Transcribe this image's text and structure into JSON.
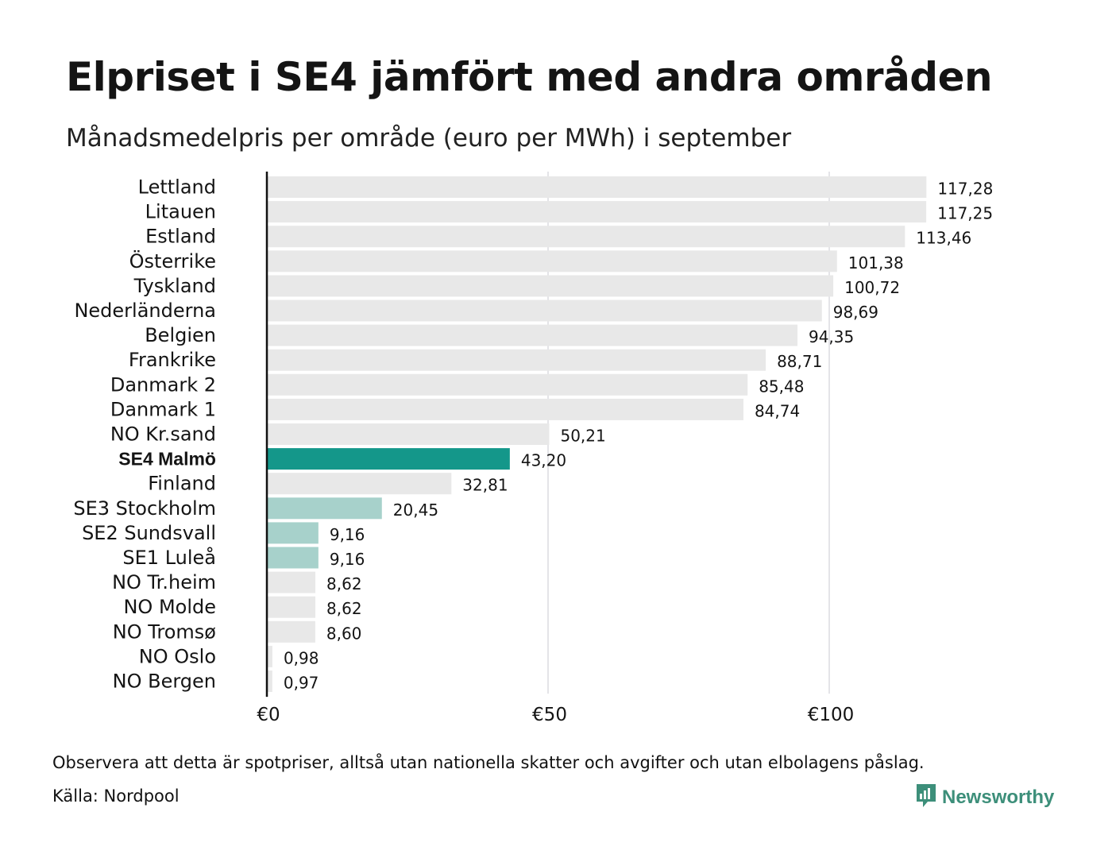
{
  "header": {
    "title": "Elpriset i SE4 jämfört med andra områden",
    "subtitle": "Månadsmedelpris per område (euro per MWh) i september"
  },
  "footer": {
    "note": "Observera att detta är spotpriser, alltså utan nationella skatter och avgifter och utan elbolagens påslag.",
    "source": "Källa: Nordpool",
    "brand": "Newsworthy"
  },
  "colors": {
    "default_bar": "#e8e8e8",
    "highlight_bar": "#14978a",
    "se_bar": "#a7d1cb",
    "axis_line": "#111111",
    "grid": "#c9c9d2",
    "brand": "#3d8f7a"
  },
  "chart_data": {
    "type": "bar",
    "orientation": "horizontal",
    "title": "Elpriset i SE4 jämfört med andra områden",
    "subtitle": "Månadsmedelpris per område (euro per MWh) i september",
    "xlim": [
      0,
      125
    ],
    "x_ticks": [
      0,
      50,
      100
    ],
    "x_tick_labels": [
      "€0",
      "€50",
      "€100"
    ],
    "grid": true,
    "categories": [
      "Lettland",
      "Litauen",
      "Estland",
      "Österrike",
      "Tyskland",
      "Nederländerna",
      "Belgien",
      "Frankrike",
      "Danmark  2",
      "Danmark  1",
      "NO Kr.sand",
      "SE4 Malmö",
      "Finland",
      "SE3  Stockholm",
      "SE2  Sundsvall",
      "SE1  Luleå",
      "NO Tr.heim",
      "NO Molde",
      "NO Tromsø",
      "NO Oslo",
      "NO Bergen"
    ],
    "values": [
      117.28,
      117.25,
      113.46,
      101.38,
      100.72,
      98.69,
      94.35,
      88.71,
      85.48,
      84.74,
      50.21,
      43.2,
      32.81,
      20.45,
      9.16,
      9.16,
      8.62,
      8.62,
      8.6,
      0.98,
      0.97
    ],
    "value_labels": [
      "117,28",
      "117,25",
      "113,46",
      "101,38",
      "100,72",
      "98,69",
      "94,35",
      "88,71",
      "85,48",
      "84,74",
      "50,21",
      "43,20",
      "32,81",
      "20,45",
      "9,16",
      "9,16",
      "8,62",
      "8,62",
      "8,60",
      "0,98",
      "0,97"
    ],
    "bar_kind": [
      "default",
      "default",
      "default",
      "default",
      "default",
      "default",
      "default",
      "default",
      "default",
      "default",
      "default",
      "highlight",
      "default",
      "se",
      "se",
      "se",
      "default",
      "default",
      "default",
      "default",
      "default"
    ]
  }
}
